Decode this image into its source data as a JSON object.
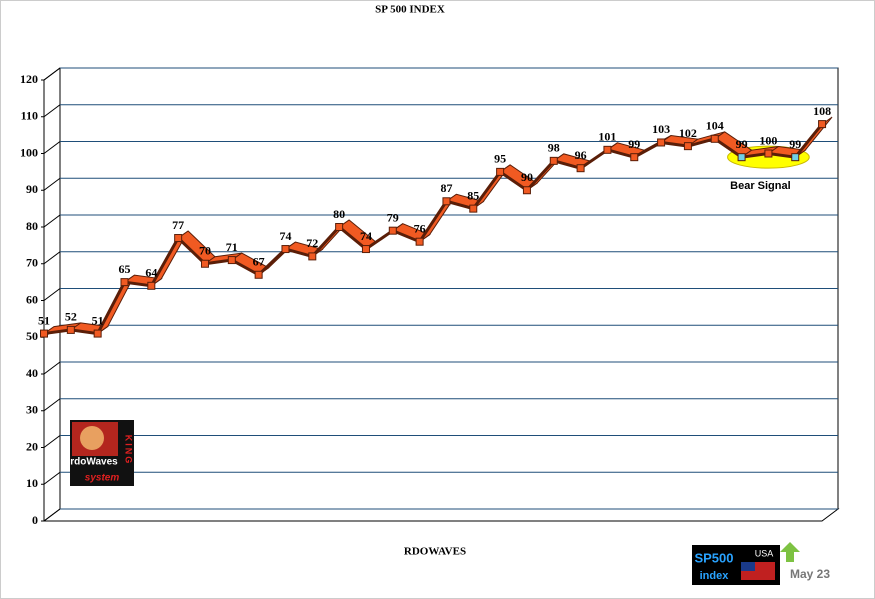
{
  "chart_data": {
    "type": "ribbon-line",
    "title": "SP 500 INDEX",
    "x_label": "RDOWAVES",
    "values": [
      51,
      52,
      51,
      65,
      64,
      77,
      70,
      71,
      67,
      74,
      72,
      80,
      74,
      79,
      76,
      87,
      85,
      95,
      90,
      98,
      96,
      101,
      99,
      103,
      102,
      104,
      99,
      100,
      99,
      108
    ],
    "color": "#f15a22",
    "marker_color": "#f15a22",
    "highlight_color": "#6fd0e8",
    "highlight_points": [
      26,
      28
    ],
    "ylim": [
      0,
      120
    ],
    "yticks": [
      0,
      10,
      20,
      30,
      40,
      50,
      60,
      70,
      80,
      90,
      100,
      110,
      120
    ],
    "grid": true,
    "annotation": "Bear Signal"
  },
  "logo": {
    "name": "rdoWaves",
    "side": "KING",
    "tag": "system"
  },
  "badge": {
    "title": "SP500",
    "subtitle": "index",
    "country": "USA",
    "date": "May 23"
  }
}
